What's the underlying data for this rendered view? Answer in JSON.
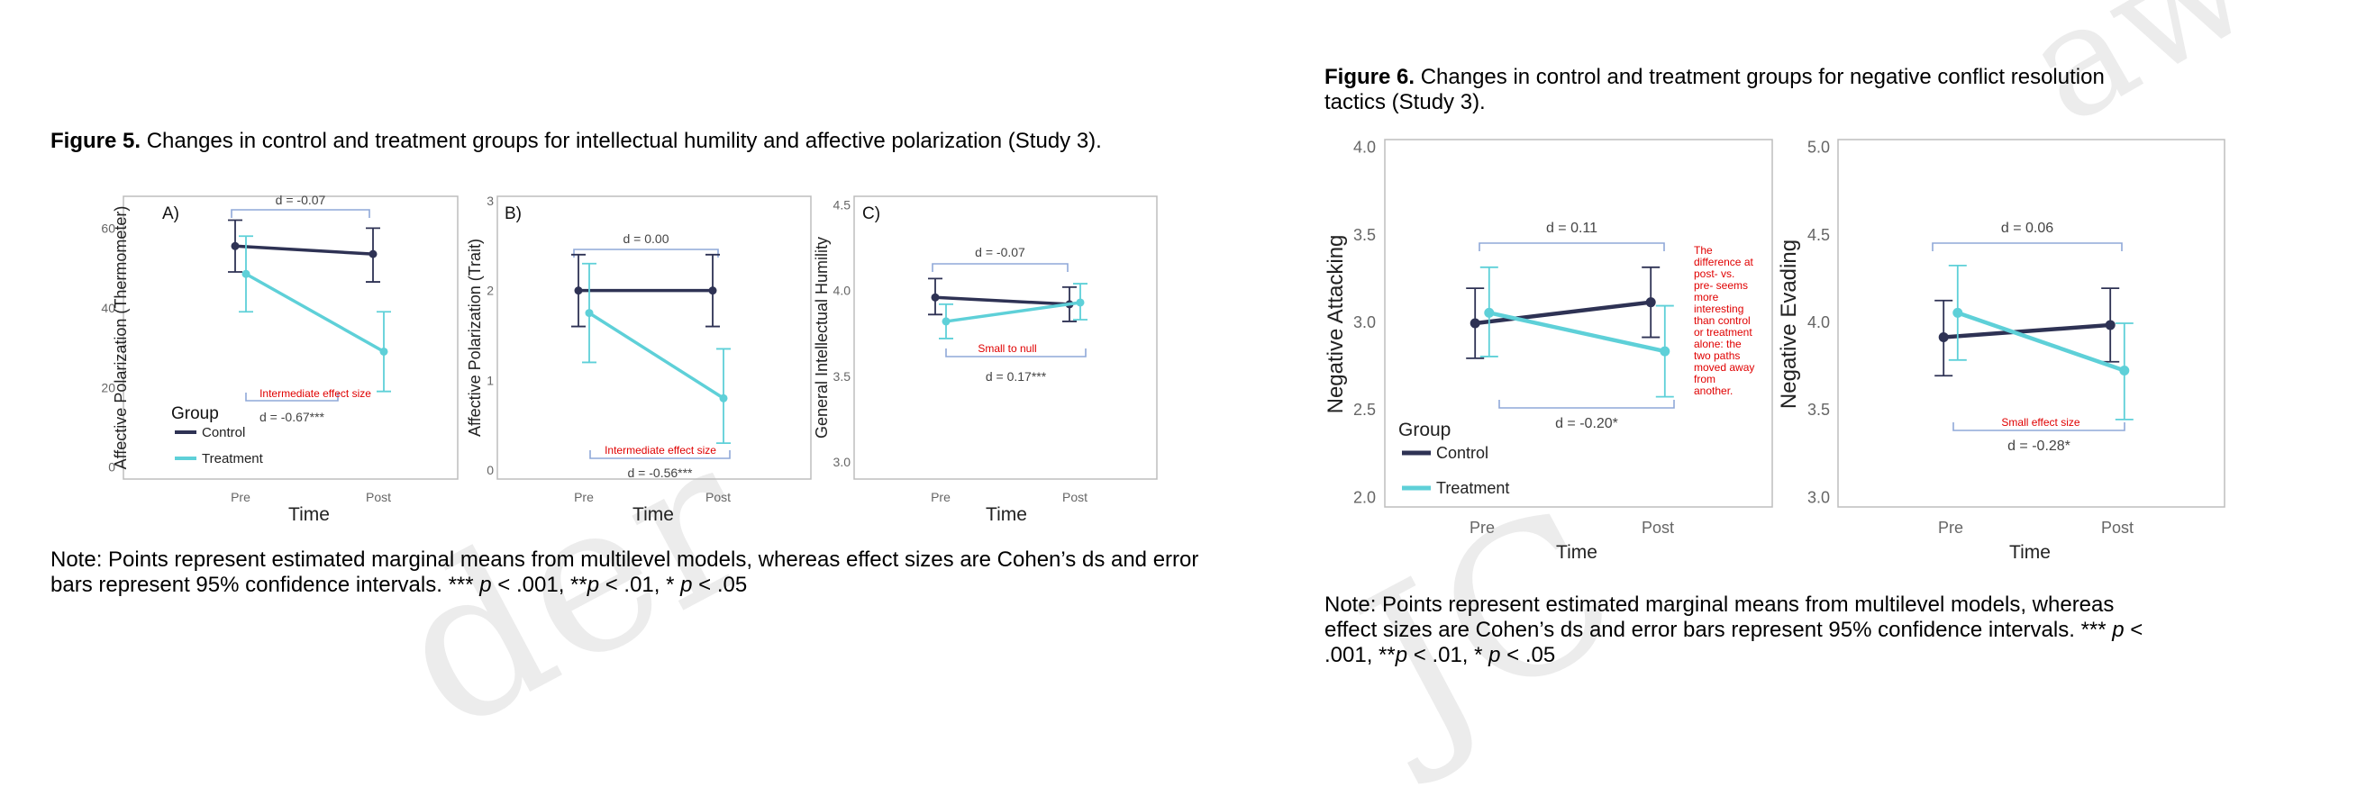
{
  "colors": {
    "control": "#2e3254",
    "treatment": "#5ed0d8",
    "bracket": "#8fa8d8",
    "annotation": "#e00000"
  },
  "watermark": {
    "left": "der",
    "right_top": "aw",
    "right_bottom": "JC"
  },
  "figure5": {
    "caption_bold": "Figure 5.",
    "caption_text": " Changes in control and treatment groups for intellectual humility and affective polarization (Study 3).",
    "time_label": "Time",
    "legend": {
      "title": "Group",
      "control": "Control",
      "treatment": "Treatment"
    },
    "note_prefix": "Note: Points represent estimated marginal means from multilevel models, whereas effect sizes are Cohen’s ds and error",
    "note_line2_a": "bars represent 95% confidence intervals. *** ",
    "note_line2_p1": "p",
    "note_line2_b": " < .001, **",
    "note_line2_p2": "p",
    "note_line2_c": " < .01, * ",
    "note_line2_p3": "p",
    "note_line2_d": " < .05"
  },
  "figure6": {
    "caption_bold": "Figure 6.",
    "caption_text_1": " Changes in control and treatment groups for negative conflict resolution",
    "caption_text_2": "tactics (Study 3).",
    "time_label": "Time",
    "legend": {
      "title": "Group",
      "control": "Control",
      "treatment": "Treatment"
    },
    "note_line1": "Note: Points represent estimated marginal means from multilevel models, whereas",
    "note_line2_a": "effect sizes are Cohen’s ds and error bars represent 95% confidence intervals. *** ",
    "note_line2_p1": "p",
    "note_line2_b": " <",
    "note_line3_a": ".001, **",
    "note_line3_p2": "p",
    "note_line3_b": " < .01, * ",
    "note_line3_p3": "p",
    "note_line3_c": " < .05"
  },
  "chart_data": [
    {
      "type": "line",
      "panel": "A)",
      "ylabel": "Affective Polarization (Thermometer)",
      "x": [
        "Pre",
        "Post"
      ],
      "ylim": [
        -3,
        68
      ],
      "yticks": [
        "0",
        "20",
        "40",
        "60"
      ],
      "ytick_values": [
        0,
        20,
        40,
        60
      ],
      "series": [
        {
          "name": "Control",
          "values": [
            55.5,
            53.5
          ],
          "ci_low": [
            49,
            46.5
          ],
          "ci_high": [
            62,
            60
          ]
        },
        {
          "name": "Treatment",
          "values": [
            48.5,
            29
          ],
          "ci_low": [
            39,
            19
          ],
          "ci_high": [
            58,
            39
          ]
        }
      ],
      "upper_effect": "d = -0.07",
      "lower_effect": "d = -0.67***",
      "annotation": "Intermediate effect size"
    },
    {
      "type": "line",
      "panel": "B)",
      "ylabel": "Affective Polarization (Trait)",
      "x": [
        "Pre",
        "Post"
      ],
      "ylim": [
        -0.1,
        3.05
      ],
      "yticks": [
        "0",
        "1",
        "2",
        "3"
      ],
      "ytick_values": [
        0,
        1,
        2,
        3
      ],
      "series": [
        {
          "name": "Control",
          "values": [
            2.0,
            2.0
          ],
          "ci_low": [
            1.6,
            1.6
          ],
          "ci_high": [
            2.4,
            2.4
          ]
        },
        {
          "name": "Treatment",
          "values": [
            1.75,
            0.8
          ],
          "ci_low": [
            1.2,
            0.3
          ],
          "ci_high": [
            2.3,
            1.35
          ]
        }
      ],
      "upper_effect": "d = 0.00",
      "lower_effect": "d = -0.56***",
      "annotation": "Intermediate effect size"
    },
    {
      "type": "line",
      "panel": "C)",
      "ylabel": "General Intellectual Humility",
      "x": [
        "Pre",
        "Post"
      ],
      "ylim": [
        2.9,
        4.55
      ],
      "yticks": [
        "3.0",
        "3.5",
        "4.0",
        "4.5"
      ],
      "ytick_values": [
        3.0,
        3.5,
        4.0,
        4.5
      ],
      "series": [
        {
          "name": "Control",
          "values": [
            3.96,
            3.92
          ],
          "ci_low": [
            3.86,
            3.82
          ],
          "ci_high": [
            4.07,
            4.02
          ]
        },
        {
          "name": "Treatment",
          "values": [
            3.82,
            3.93
          ],
          "ci_low": [
            3.72,
            3.83
          ],
          "ci_high": [
            3.92,
            4.04
          ]
        }
      ],
      "upper_effect": "d = -0.07",
      "lower_effect": "d = 0.17***",
      "annotation": "Small to null"
    },
    {
      "type": "line",
      "ylabel": "Negative Attacking",
      "x": [
        "Pre",
        "Post"
      ],
      "ylim": [
        1.95,
        4.05
      ],
      "yticks": [
        "2.0",
        "2.5",
        "3.0",
        "3.5",
        "4.0"
      ],
      "ytick_values": [
        2.0,
        2.5,
        3.0,
        3.5,
        4.0
      ],
      "series": [
        {
          "name": "Control",
          "values": [
            3.0,
            3.12
          ],
          "ci_low": [
            2.8,
            2.92
          ],
          "ci_high": [
            3.2,
            3.32
          ]
        },
        {
          "name": "Treatment",
          "values": [
            3.06,
            2.84
          ],
          "ci_low": [
            2.81,
            2.58
          ],
          "ci_high": [
            3.32,
            3.1
          ]
        }
      ],
      "upper_effect": "d = 0.11",
      "lower_effect": "d = -0.20*",
      "annotation": [
        "The",
        "difference at",
        "post- vs.",
        "pre- seems",
        "more",
        "interesting",
        "than control",
        "or treatment",
        "alone: the",
        "two paths",
        "moved away",
        "from",
        "another."
      ]
    },
    {
      "type": "line",
      "ylabel": "Negative Evading",
      "x": [
        "Pre",
        "Post"
      ],
      "ylim": [
        2.95,
        5.05
      ],
      "yticks": [
        "3.0",
        "3.5",
        "4.0",
        "4.5",
        "5.0"
      ],
      "ytick_values": [
        3.0,
        3.5,
        4.0,
        4.5,
        5.0
      ],
      "series": [
        {
          "name": "Control",
          "values": [
            3.92,
            3.99
          ],
          "ci_low": [
            3.7,
            3.78
          ],
          "ci_high": [
            4.13,
            4.2
          ]
        },
        {
          "name": "Treatment",
          "values": [
            4.06,
            3.73
          ],
          "ci_low": [
            3.79,
            3.45
          ],
          "ci_high": [
            4.33,
            4.0
          ]
        }
      ],
      "upper_effect": "d = 0.06",
      "lower_effect": "d = -0.28*",
      "annotation": "Small effect size"
    }
  ]
}
